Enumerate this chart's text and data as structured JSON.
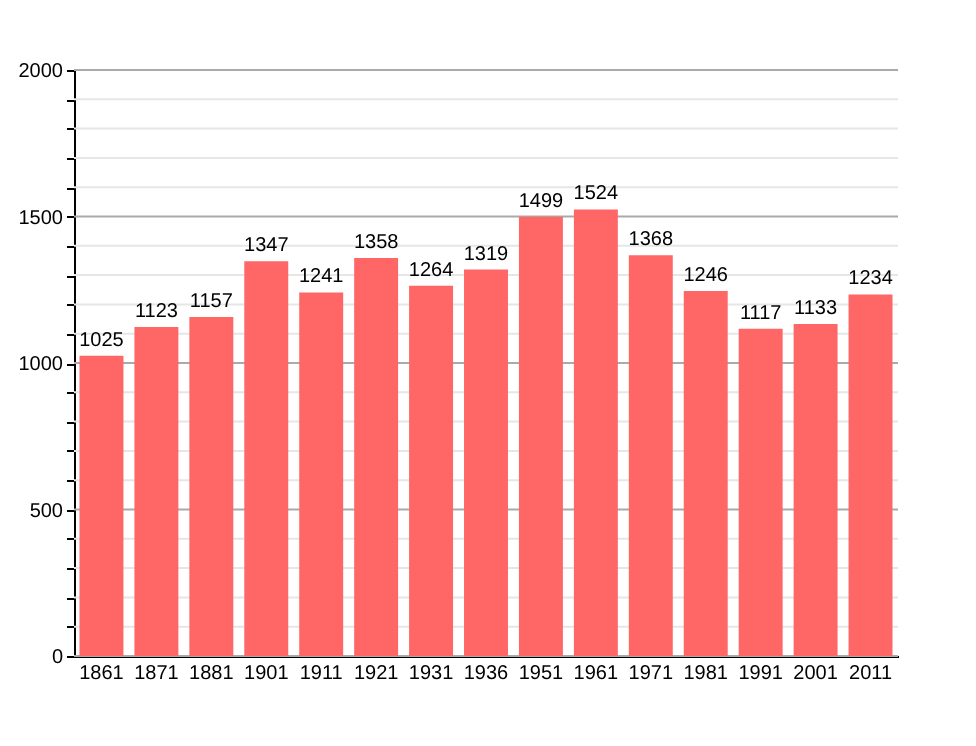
{
  "chart_data": {
    "type": "bar",
    "categories": [
      "1861",
      "1871",
      "1881",
      "1901",
      "1911",
      "1921",
      "1931",
      "1936",
      "1951",
      "1961",
      "1971",
      "1981",
      "1991",
      "2001",
      "2011"
    ],
    "values": [
      1025,
      1123,
      1157,
      1347,
      1241,
      1358,
      1264,
      1319,
      1499,
      1524,
      1368,
      1246,
      1117,
      1133,
      1234
    ],
    "color": "#ff6666",
    "ylim": [
      0,
      2000
    ],
    "yticks": [
      0,
      {
        "value": 100,
        "label": null
      },
      {
        "value": 200,
        "label": null
      },
      {
        "value": 300,
        "label": null
      },
      {
        "value": 400,
        "label": null
      },
      500,
      {
        "value": 600,
        "label": null
      },
      {
        "value": 700,
        "label": null
      },
      {
        "value": 800,
        "label": null
      },
      {
        "value": 900,
        "label": null
      },
      1000,
      {
        "value": 1100,
        "label": null
      },
      {
        "value": 1200,
        "label": null
      },
      {
        "value": 1300,
        "label": null
      },
      {
        "value": 1400,
        "label": null
      },
      1500,
      {
        "value": 1600,
        "label": null
      },
      {
        "value": 1700,
        "label": null
      },
      {
        "value": 1800,
        "label": null
      },
      {
        "value": 1900,
        "label": null
      },
      2000
    ],
    "grid": true,
    "data_labels": true
  }
}
